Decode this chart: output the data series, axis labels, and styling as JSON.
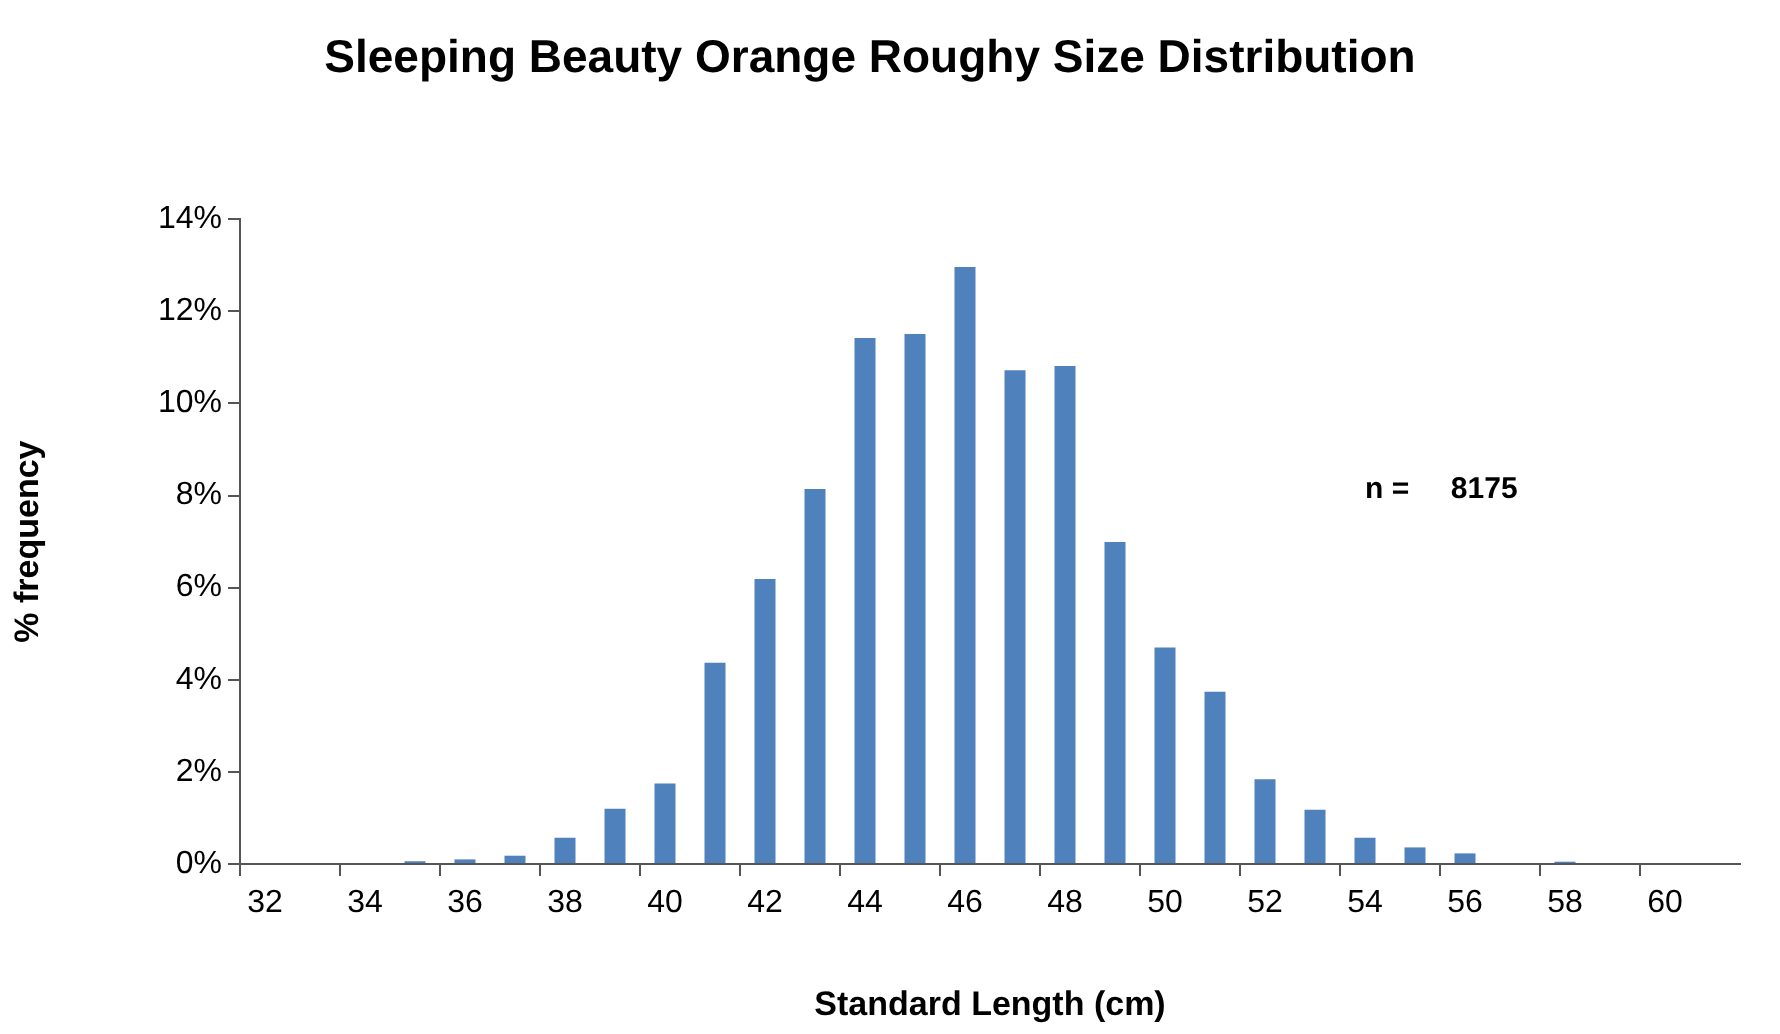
{
  "chart_data": {
    "type": "bar",
    "title": "Sleeping Beauty Orange Roughy Size Distribution",
    "xlabel": "Standard Length (cm)",
    "ylabel": "% frequency",
    "categories": [
      "32",
      null,
      "34",
      null,
      "36",
      null,
      "38",
      null,
      "40",
      null,
      "42",
      null,
      "44",
      null,
      "46",
      null,
      "48",
      null,
      "50",
      null,
      "52",
      null,
      "54",
      null,
      "56",
      null,
      "58",
      null,
      "60",
      null
    ],
    "values": [
      0,
      0,
      0,
      0.06,
      0.1,
      0.18,
      0.57,
      1.2,
      1.75,
      4.37,
      6.19,
      8.14,
      11.42,
      11.51,
      12.96,
      10.72,
      10.81,
      6.99,
      4.7,
      3.74,
      1.84,
      1.18,
      0.57,
      0.36,
      0.23,
      0,
      0.05,
      0,
      0,
      0
    ],
    "color": "#4f81bd",
    "ylim": [
      0,
      14
    ],
    "yticks": [
      {
        "value": 0,
        "label": "0%"
      },
      {
        "value": 2,
        "label": "2%"
      },
      {
        "value": 4,
        "label": "4%"
      },
      {
        "value": 6,
        "label": "6%"
      },
      {
        "value": 8,
        "label": "8%"
      },
      {
        "value": 10,
        "label": "10%"
      },
      {
        "value": 12,
        "label": "12%"
      },
      {
        "value": 14,
        "label": "14%"
      }
    ],
    "annotations": [
      "n =     8175"
    ],
    "grid": false,
    "legend": false
  }
}
